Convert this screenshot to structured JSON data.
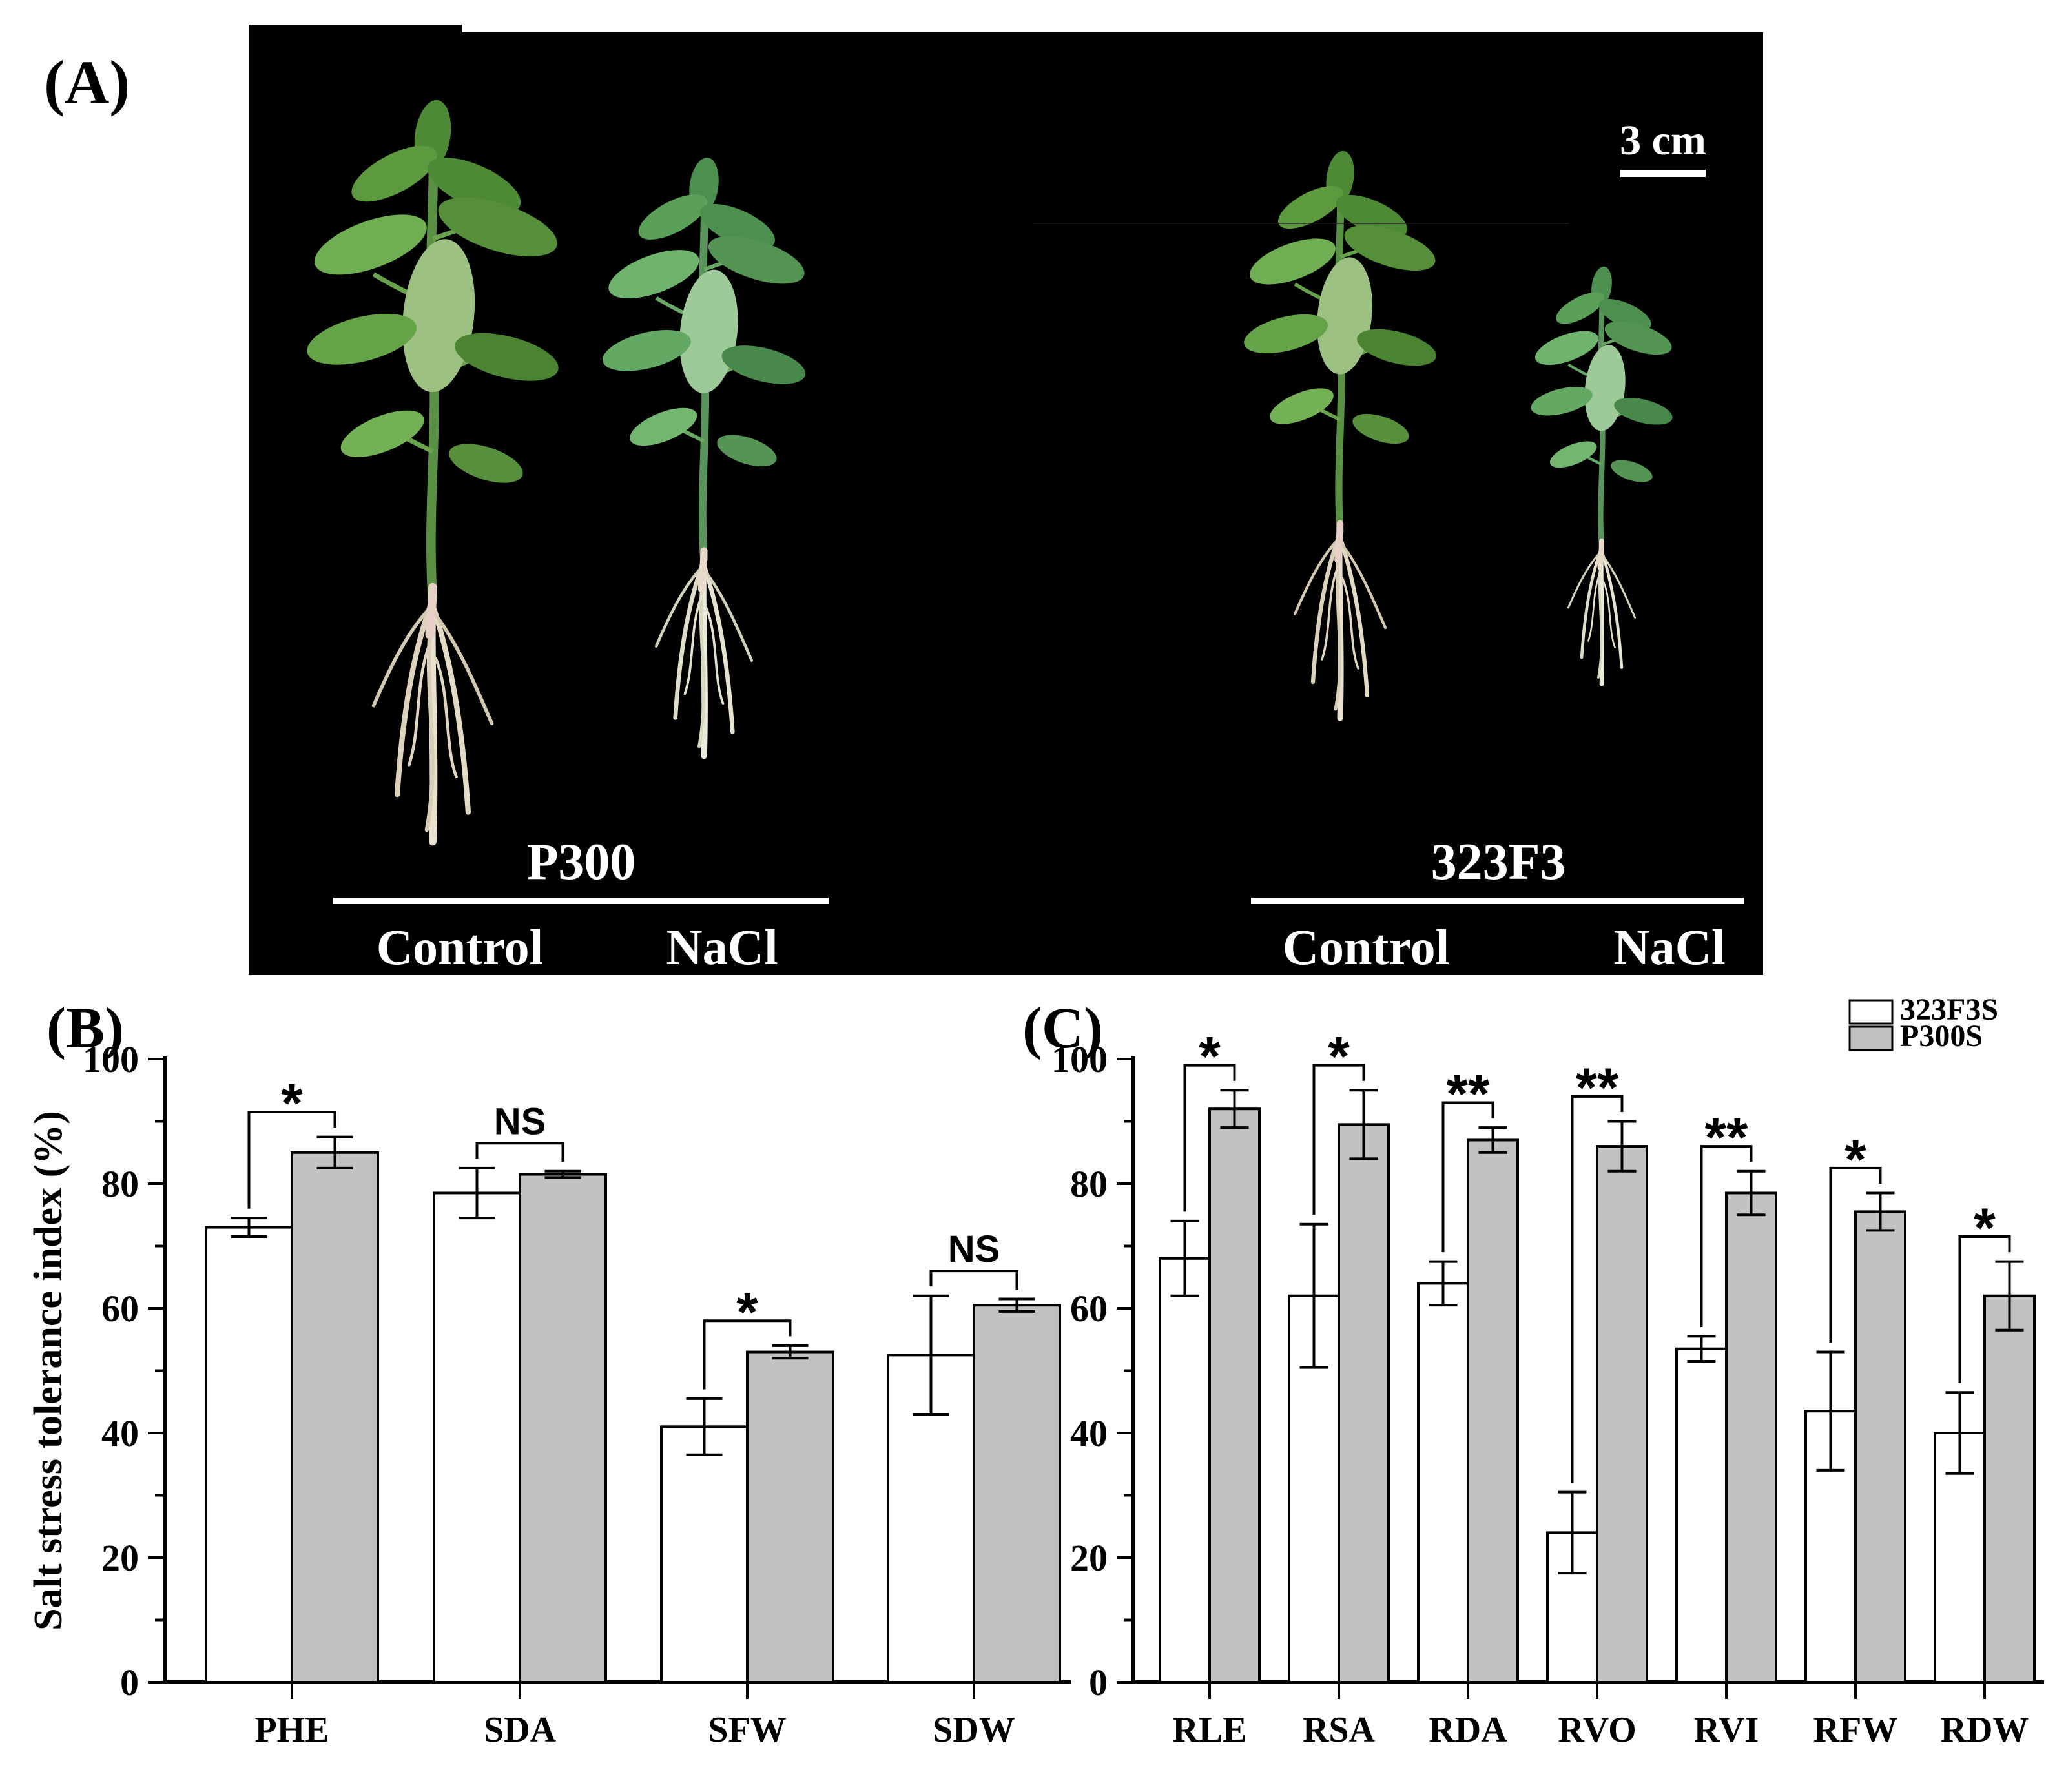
{
  "figure": {
    "panel_a": {
      "label": "(A)",
      "scale_bar_label": "3 cm",
      "groups": [
        {
          "name": "P300",
          "left_condition": "Control",
          "right_condition": "NaCl"
        },
        {
          "name": "323F3",
          "left_condition": "Control",
          "right_condition": "NaCl"
        }
      ]
    },
    "panel_b": {
      "label": "(B)"
    },
    "panel_c": {
      "label": "(C)"
    }
  },
  "colors": {
    "photo_background": "#000000",
    "photo_text": "#ffffff",
    "bar_white": "#ffffff",
    "bar_gray": "#c2c2c2",
    "axis": "#000000"
  },
  "chart_data": [
    {
      "type": "bar",
      "panel": "B",
      "title": "",
      "xlabel": "",
      "ylabel": "Salt stress tolerance index (%)",
      "ylim": [
        0,
        100
      ],
      "yticks": [
        0,
        20,
        40,
        60,
        80,
        100
      ],
      "minor_tick_step": 10,
      "grid": false,
      "categories": [
        "PHE",
        "SDA",
        "SFW",
        "SDW"
      ],
      "series": [
        {
          "name": "323F3S",
          "fill": "#ffffff",
          "values": [
            73,
            78.5,
            41,
            52.5
          ],
          "errors": [
            1.5,
            4,
            4.5,
            9.5
          ]
        },
        {
          "name": "P300S",
          "fill": "#c2c2c2",
          "values": [
            85,
            81.5,
            53,
            60.5
          ],
          "errors": [
            2.5,
            0.5,
            1,
            1
          ]
        }
      ],
      "significance": [
        "*",
        "NS",
        "*",
        "NS"
      ],
      "legend_position": "none"
    },
    {
      "type": "bar",
      "panel": "C",
      "title": "",
      "xlabel": "",
      "ylabel": "",
      "ylim": [
        0,
        100
      ],
      "yticks": [
        0,
        20,
        40,
        60,
        80,
        100
      ],
      "minor_tick_step": 10,
      "grid": false,
      "categories": [
        "RLE",
        "RSA",
        "RDA",
        "RVO",
        "RVI",
        "RFW",
        "RDW"
      ],
      "series": [
        {
          "name": "323F3S",
          "fill": "#ffffff",
          "values": [
            68,
            62,
            64,
            24,
            53.5,
            43.5,
            40
          ],
          "errors": [
            6,
            11.5,
            3.5,
            6.5,
            2,
            9.5,
            6.5
          ]
        },
        {
          "name": "P300S",
          "fill": "#c2c2c2",
          "values": [
            92,
            89.5,
            87,
            86,
            78.5,
            75.5,
            62
          ],
          "errors": [
            3,
            5.5,
            2,
            4,
            3.5,
            3,
            5.5
          ]
        }
      ],
      "significance": [
        "*",
        "*",
        "**",
        "**",
        "**",
        "*",
        "*"
      ],
      "legend_position": "top-right",
      "legend": [
        "323F3S",
        "P300S"
      ]
    }
  ]
}
